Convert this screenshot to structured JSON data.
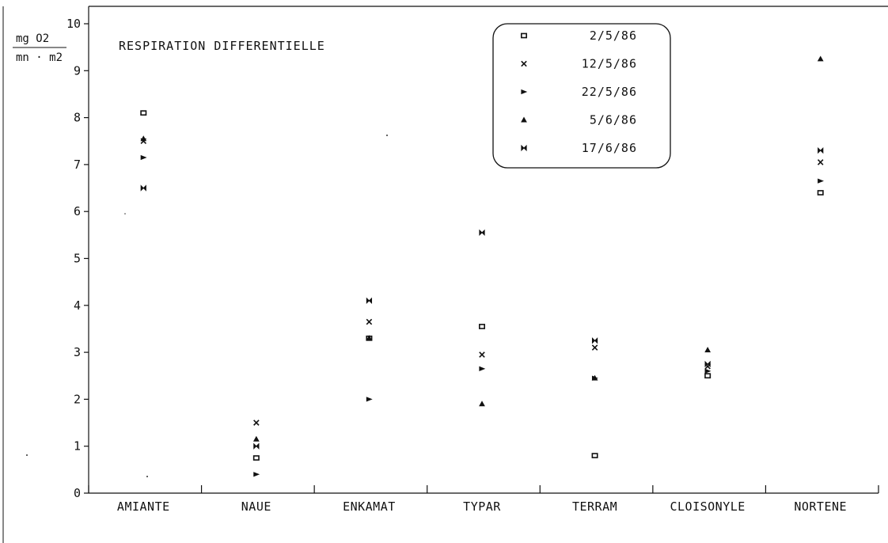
{
  "chart_data": {
    "type": "scatter",
    "title": "RESPIRATION DIFFERENTIELLE",
    "ylabel_numerator": "mg O2",
    "ylabel_denominator": "mn · m2",
    "ylim": [
      0,
      10
    ],
    "yticks": [
      0,
      1,
      2,
      3,
      4,
      5,
      6,
      7,
      8,
      9,
      10
    ],
    "grid": false,
    "legend_position": "top-right",
    "categories": [
      "AMIANTE",
      "NAUE",
      "ENKAMAT",
      "TYPAR",
      "TERRAM",
      "CLOISONYLE",
      "NORTENE"
    ],
    "series": [
      {
        "name": "2/5/86",
        "marker": "square",
        "values": [
          8.1,
          0.75,
          3.3,
          3.55,
          0.8,
          2.5,
          6.4
        ]
      },
      {
        "name": "12/5/86",
        "marker": "x",
        "values": [
          7.5,
          1.5,
          3.65,
          2.95,
          3.1,
          2.7,
          7.05
        ]
      },
      {
        "name": "22/5/86",
        "marker": "triangle-right",
        "values": [
          7.15,
          0.4,
          2.0,
          2.65,
          2.45,
          2.6,
          6.65
        ]
      },
      {
        "name": "5/6/86",
        "marker": "triangle-up",
        "values": [
          7.55,
          1.15,
          3.3,
          1.9,
          2.45,
          3.05,
          9.25
        ]
      },
      {
        "name": "17/6/86",
        "marker": "bowtie",
        "values": [
          6.5,
          1.0,
          4.1,
          5.55,
          3.25,
          2.75,
          7.3
        ]
      }
    ]
  }
}
